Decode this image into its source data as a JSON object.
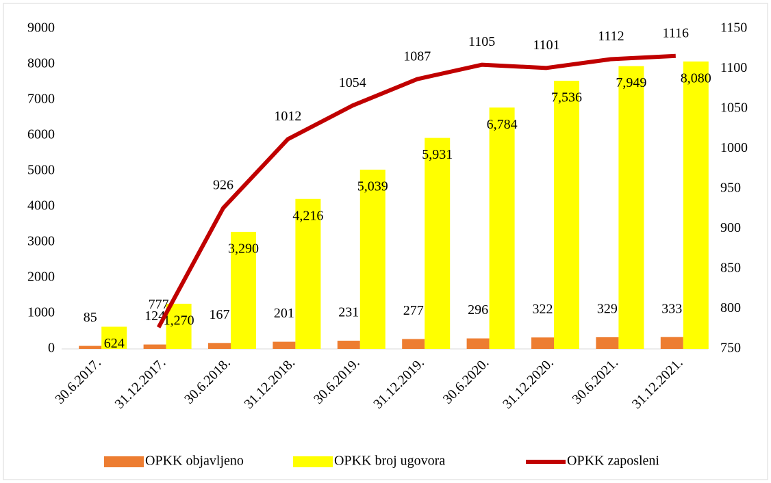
{
  "chart_data": {
    "type": "bar",
    "categories": [
      "30.6.2017.",
      "31.12.2017.",
      "30.6.2018.",
      "31.12.2018.",
      "30.6.2019.",
      "31.12.2019.",
      "30.6.2020.",
      "31.12.2020.",
      "30.6.2021.",
      "31.12.2021."
    ],
    "series": [
      {
        "name": "OPKK objavljeno",
        "color": "#ed7d31",
        "values": [
          85,
          124,
          167,
          201,
          231,
          277,
          296,
          322,
          329,
          333
        ]
      },
      {
        "name": "OPKK broj ugovora",
        "color": "#ffff00",
        "values": [
          624,
          1270,
          3290,
          4216,
          5039,
          5931,
          6784,
          7536,
          7949,
          8080
        ],
        "value_labels": [
          "624",
          "1,270",
          "3,290",
          "4,216",
          "5,039",
          "5,931",
          "6,784",
          "7,536",
          "7,949",
          "8,080"
        ]
      },
      {
        "name": "OPKK zaposleni",
        "color": "#c00000",
        "type": "line",
        "axis": "y2",
        "values": [
          null,
          777,
          926,
          1012,
          1054,
          1087,
          1105,
          1101,
          1112,
          1116
        ]
      }
    ],
    "ylim": [
      0,
      9000
    ],
    "yticks": [
      0,
      1000,
      2000,
      3000,
      4000,
      5000,
      6000,
      7000,
      8000,
      9000
    ],
    "y2lim": [
      750,
      1150
    ],
    "y2ticks": [
      750,
      800,
      850,
      900,
      950,
      1000,
      1050,
      1100,
      1150
    ],
    "legend": "bottom"
  }
}
